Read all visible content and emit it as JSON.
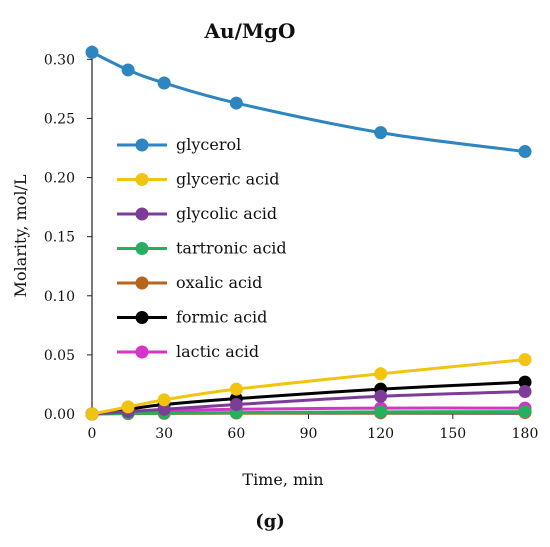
{
  "chart_data": {
    "type": "line",
    "title": "Au/MgO",
    "xlabel": "Time, min",
    "ylabel": "Molarity, mol/L",
    "panel_label": "(g)",
    "xlim": [
      0,
      180
    ],
    "ylim": [
      0,
      0.31
    ],
    "x_ticks": [
      0,
      30,
      60,
      90,
      120,
      150,
      180
    ],
    "x_tick_labels": [
      "0",
      "30",
      "60",
      "90",
      "120",
      "150",
      "180"
    ],
    "y_ticks": [
      0,
      0.05,
      0.1,
      0.15,
      0.2,
      0.25,
      0.3
    ],
    "y_tick_labels": [
      "0.00",
      "0.05",
      "0.10",
      "0.15",
      "0.20",
      "0.25",
      "0.30"
    ],
    "grid": false,
    "legend_position": "center-left",
    "x": [
      0,
      15,
      30,
      60,
      120,
      180
    ],
    "series": [
      {
        "name": "glycerol",
        "color": "#2e86c1",
        "values": [
          0.306,
          0.291,
          0.28,
          0.263,
          0.238,
          0.222
        ]
      },
      {
        "name": "glyceric acid",
        "color": "#f1c40f",
        "values": [
          0,
          0.006,
          0.012,
          0.021,
          0.034,
          0.046
        ]
      },
      {
        "name": "glycolic acid",
        "color": "#7d3c98",
        "values": [
          0,
          0.002,
          0.004,
          0.008,
          0.015,
          0.019
        ]
      },
      {
        "name": "tartronic acid",
        "color": "#27ae60",
        "values": [
          0,
          0.0005,
          0.0008,
          0.0012,
          0.0018,
          0.002
        ]
      },
      {
        "name": "oxalic acid",
        "color": "#b5651d",
        "values": [
          0,
          0.0003,
          0.0005,
          0.0008,
          0.001,
          0.0012
        ]
      },
      {
        "name": "formic acid",
        "color": "#000000",
        "values": [
          0,
          0.004,
          0.008,
          0.013,
          0.021,
          0.027
        ]
      },
      {
        "name": "lactic acid",
        "color": "#d633c9",
        "values": [
          0,
          0.002,
          0.003,
          0.004,
          0.005,
          0.005
        ]
      }
    ]
  }
}
